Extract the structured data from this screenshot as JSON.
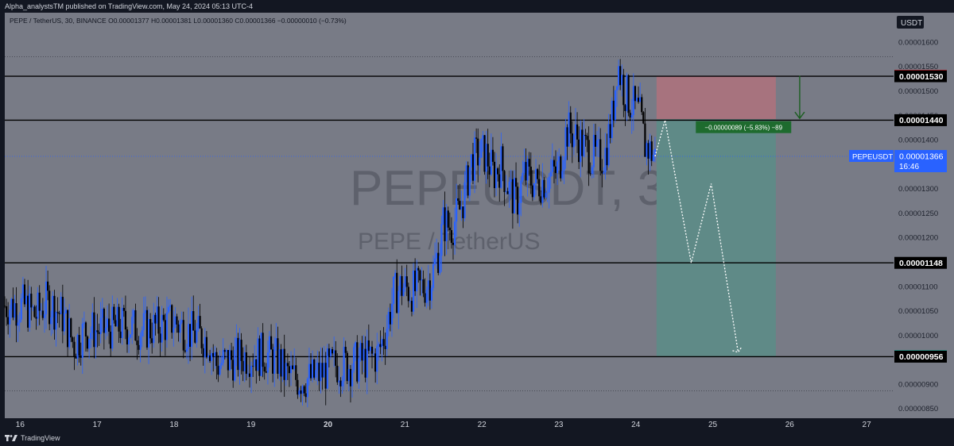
{
  "header": {
    "publish_line": "Alpha_analystsTM published on TradingView.com, May 24, 2024 05:13 UTC-4"
  },
  "legend": {
    "line": "PEPE / TetherUS, 30, BINANCE  O0.00001377  H0.00001381  L0.00001360  C0.00001366  −0.00000010 (−0.73%)"
  },
  "footer": {
    "brand": "TradingView"
  },
  "colors": {
    "panel_bg": "#787b86",
    "page_bg": "#131722",
    "candle_up": "#2962ff",
    "candle_down": "#000000",
    "stop_zone": "#a7737e",
    "target_zone": "#5f8a87",
    "stop_label": "#f23645",
    "target_label": "#089981",
    "last_price_label": "#2962ff",
    "level_line": "#000000"
  },
  "chart_data": {
    "type": "candlestick",
    "title": "PEPEUSDT, 30",
    "subtitle": "PEPE / TetherUS",
    "exchange": "BINANCE",
    "timeframe": "30",
    "currency": "USDT",
    "ohlc_last": {
      "open": 1.377e-05,
      "high": 1.381e-05,
      "low": 1.36e-05,
      "close": 1.366e-05,
      "change": -1e-07,
      "change_pct": -0.73
    },
    "ylim": [
      8.3e-06,
      1.66e-05
    ],
    "y_ticks": [
      1.6e-05,
      1.55e-05,
      1.5e-05,
      1.45e-05,
      1.4e-05,
      1.35e-05,
      1.3e-05,
      1.25e-05,
      1.2e-05,
      1.15e-05,
      1.1e-05,
      1.05e-05,
      1e-05,
      9.5e-06,
      9e-06,
      8.5e-06
    ],
    "y_tick_labels": [
      "0.00001600",
      "0.00001550",
      "0.00001500",
      "0.00001450",
      "0.00001400",
      "0.00001350",
      "0.00001300",
      "0.00001250",
      "0.00001200",
      "0.00001150",
      "0.00001100",
      "0.00001050",
      "0.00001000",
      "0.00000950",
      "0.00000900",
      "0.00000850"
    ],
    "x_axis": {
      "tick_labels": [
        "16",
        "17",
        "18",
        "19",
        "20",
        "21",
        "22",
        "23",
        "24",
        "25",
        "26",
        "27"
      ],
      "bold_labels": [
        "20"
      ],
      "day_range": [
        15.8,
        27.35
      ]
    },
    "horizontal_levels": [
      1.53e-05,
      1.44e-05,
      1.148e-05,
      9.56e-06
    ],
    "dotted_levels": [
      1.57e-05,
      8.86e-06
    ],
    "axis_labels": [
      {
        "text": "0.00001531",
        "value": 1.531e-05,
        "style": "stop"
      },
      {
        "text": "0.00001530",
        "value": 1.53e-05,
        "style": "level"
      },
      {
        "text": "0.00001442",
        "value": 1.442e-05,
        "style": "plain"
      },
      {
        "text": "0.00001440",
        "value": 1.44e-05,
        "style": "level"
      },
      {
        "text": "0.00001148",
        "value": 1.148e-05,
        "style": "level"
      },
      {
        "text": "0.00000957",
        "value": 9.57e-06,
        "style": "target"
      },
      {
        "text": "0.00000956",
        "value": 9.56e-06,
        "style": "level"
      }
    ],
    "last_price": {
      "symbol": "PEPEUSDT",
      "value": 1.366e-05,
      "text": "0.00001366",
      "countdown": "16:46"
    },
    "short_position": {
      "x_start_day": 24.27,
      "x_end_day": 25.82,
      "entry": 1.442e-05,
      "stop": 1.531e-05,
      "target": 9.57e-06,
      "arrow_day": 26.13,
      "measure_label": "−0.00000089 (−5.83%) −89",
      "measure_label_day": 25.4,
      "measure_label_value": 1.425e-05
    },
    "projection_path": [
      {
        "day": 24.25,
        "value": 1.366e-05
      },
      {
        "day": 24.38,
        "value": 1.44e-05
      },
      {
        "day": 24.72,
        "value": 1.148e-05
      },
      {
        "day": 24.98,
        "value": 1.31e-05
      },
      {
        "day": 25.33,
        "value": 9.65e-06
      }
    ],
    "price_path": [
      {
        "day": 15.8,
        "value": 1.06e-05
      },
      {
        "day": 16.05,
        "value": 1.06e-05
      },
      {
        "day": 16.2,
        "value": 1.04e-05
      },
      {
        "day": 16.35,
        "value": 1.07e-05
      },
      {
        "day": 16.55,
        "value": 1.04e-05
      },
      {
        "day": 16.7,
        "value": 9.8e-06
      },
      {
        "day": 16.85,
        "value": 1.01e-05
      },
      {
        "day": 17.1,
        "value": 1.01e-05
      },
      {
        "day": 17.35,
        "value": 1.02e-05
      },
      {
        "day": 17.6,
        "value": 1.01e-05
      },
      {
        "day": 17.85,
        "value": 1.02e-05
      },
      {
        "day": 18.0,
        "value": 1.03e-05
      },
      {
        "day": 18.15,
        "value": 1.01e-05
      },
      {
        "day": 18.3,
        "value": 1e-05
      },
      {
        "day": 18.45,
        "value": 9.9e-06
      },
      {
        "day": 18.55,
        "value": 9.4e-06
      },
      {
        "day": 18.75,
        "value": 9.5e-06
      },
      {
        "day": 19.0,
        "value": 9.6e-06
      },
      {
        "day": 19.2,
        "value": 9.6e-06
      },
      {
        "day": 19.35,
        "value": 9.5e-06
      },
      {
        "day": 19.45,
        "value": 9.2e-06
      },
      {
        "day": 19.6,
        "value": 9.1e-06
      },
      {
        "day": 19.75,
        "value": 9.1e-06
      },
      {
        "day": 19.9,
        "value": 9.2e-06
      },
      {
        "day": 20.1,
        "value": 9.4e-06
      },
      {
        "day": 20.3,
        "value": 9.4e-06
      },
      {
        "day": 20.5,
        "value": 9.5e-06
      },
      {
        "day": 20.65,
        "value": 9.6e-06
      },
      {
        "day": 20.75,
        "value": 1.01e-05
      },
      {
        "day": 20.85,
        "value": 1.08e-05
      },
      {
        "day": 20.95,
        "value": 1.1e-05
      },
      {
        "day": 21.1,
        "value": 1.09e-05
      },
      {
        "day": 21.25,
        "value": 1.1e-05
      },
      {
        "day": 21.35,
        "value": 1.12e-05
      },
      {
        "day": 21.45,
        "value": 1.18e-05
      },
      {
        "day": 21.5,
        "value": 1.23e-05
      },
      {
        "day": 21.6,
        "value": 1.22e-05
      },
      {
        "day": 21.7,
        "value": 1.25e-05
      },
      {
        "day": 21.78,
        "value": 1.29e-05
      },
      {
        "day": 21.85,
        "value": 1.35e-05
      },
      {
        "day": 21.95,
        "value": 1.37e-05
      },
      {
        "day": 22.05,
        "value": 1.37e-05
      },
      {
        "day": 22.15,
        "value": 1.33e-05
      },
      {
        "day": 22.25,
        "value": 1.35e-05
      },
      {
        "day": 22.35,
        "value": 1.3e-05
      },
      {
        "day": 22.45,
        "value": 1.27e-05
      },
      {
        "day": 22.55,
        "value": 1.33e-05
      },
      {
        "day": 22.7,
        "value": 1.31e-05
      },
      {
        "day": 22.85,
        "value": 1.32e-05
      },
      {
        "day": 23.0,
        "value": 1.34e-05
      },
      {
        "day": 23.1,
        "value": 1.42e-05
      },
      {
        "day": 23.2,
        "value": 1.41e-05
      },
      {
        "day": 23.35,
        "value": 1.38e-05
      },
      {
        "day": 23.5,
        "value": 1.36e-05
      },
      {
        "day": 23.6,
        "value": 1.37e-05
      },
      {
        "day": 23.7,
        "value": 1.45e-05
      },
      {
        "day": 23.76,
        "value": 1.56e-05
      },
      {
        "day": 23.85,
        "value": 1.5e-05
      },
      {
        "day": 23.95,
        "value": 1.47e-05
      },
      {
        "day": 24.05,
        "value": 1.45e-05
      },
      {
        "day": 24.12,
        "value": 1.39e-05
      },
      {
        "day": 24.25,
        "value": 1.366e-05
      }
    ]
  }
}
